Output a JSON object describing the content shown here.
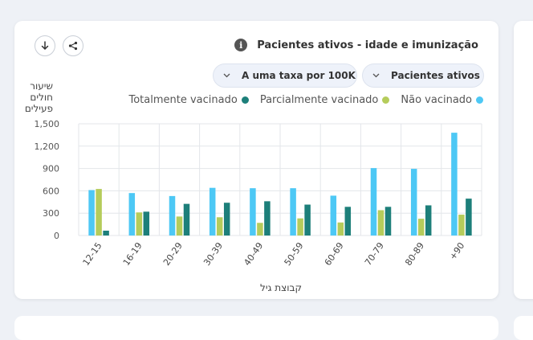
{
  "header": {
    "title": "Pacientes ativos - idade e imunização",
    "info_icon": "info-icon",
    "download_icon": "download-icon",
    "share_icon": "share-icon"
  },
  "filters": {
    "rate_label": "A uma taxa por 100K",
    "population_label": "Pacientes ativos"
  },
  "colors": {
    "fully": "#1d7f7a",
    "partial": "#b5cc5b",
    "none": "#4dc8f5"
  },
  "chart_data": {
    "type": "bar",
    "xlabel": "קבוצת גיל",
    "ylabel": "שיעור חולים פעילים",
    "ylim": [
      0,
      1500
    ],
    "yticks": [
      "0",
      "300",
      "600",
      "900",
      "1,200",
      "1,500"
    ],
    "ytick_values": [
      0,
      300,
      600,
      900,
      1200,
      1500
    ],
    "legend_placement": "top-right",
    "grid": true,
    "categories": [
      "12-15",
      "16-19",
      "20-29",
      "30-39",
      "40-49",
      "50-59",
      "60-69",
      "70-79",
      "80-89",
      "+90"
    ],
    "series": [
      {
        "name": "Não vacinado",
        "color": "#4dc8f5",
        "values": [
          610,
          570,
          530,
          640,
          635,
          635,
          535,
          905,
          895,
          1380
        ]
      },
      {
        "name": "Parcialmente vacinado",
        "color": "#b5cc5b",
        "values": [
          625,
          310,
          255,
          245,
          170,
          230,
          175,
          340,
          225,
          280
        ]
      },
      {
        "name": "Totalmente vacinado",
        "color": "#1d7f7a",
        "values": [
          65,
          320,
          425,
          440,
          460,
          415,
          385,
          385,
          405,
          495
        ]
      }
    ]
  }
}
